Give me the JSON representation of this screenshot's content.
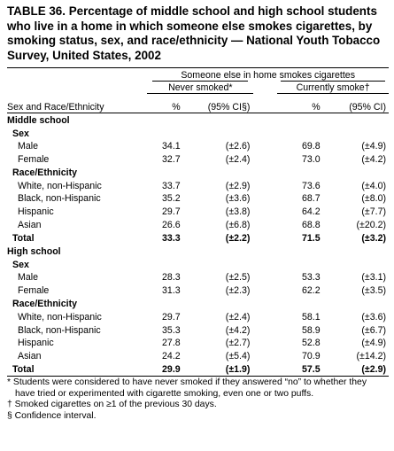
{
  "title": "TABLE 36. Percentage of middle school and high school students who live in a home in which someone else smokes cigarettes, by smoking status, sex, and race/ethnicity — National Youth Tobacco Survey, United States, 2002",
  "header": {
    "spanner": "Someone else in home smokes cigarettes",
    "never_smoked": "Never smoked*",
    "currently_smoke": "Currently smoke†",
    "row_label": "Sex and Race/Ethnicity",
    "pct": "%",
    "ci": "(95% CI§)",
    "pct2": "%",
    "ci2": "(95% CI)"
  },
  "middle_school": {
    "label": "Middle school",
    "sex_label": "Sex",
    "race_label": "Race/Ethnicity",
    "rows": [
      {
        "label": "Male",
        "never_pct": "34.1",
        "never_ci": "(±2.6)",
        "current_pct": "69.8",
        "current_ci": "(±4.9)"
      },
      {
        "label": "Female",
        "never_pct": "32.7",
        "never_ci": "(±2.4)",
        "current_pct": "73.0",
        "current_ci": "(±4.2)"
      },
      {
        "label": "White, non-Hispanic",
        "never_pct": "33.7",
        "never_ci": "(±2.9)",
        "current_pct": "73.6",
        "current_ci": "(±4.0)"
      },
      {
        "label": "Black, non-Hispanic",
        "never_pct": "35.2",
        "never_ci": "(±3.6)",
        "current_pct": "68.7",
        "current_ci": "(±8.0)"
      },
      {
        "label": "Hispanic",
        "never_pct": "29.7",
        "never_ci": "(±3.8)",
        "current_pct": "64.2",
        "current_ci": "(±7.7)"
      },
      {
        "label": "Asian",
        "never_pct": "26.6",
        "never_ci": "(±6.8)",
        "current_pct": "68.8",
        "current_ci": "(±20.2)"
      }
    ],
    "total": {
      "label": "Total",
      "never_pct": "33.3",
      "never_ci": "(±2.2)",
      "current_pct": "71.5",
      "current_ci": "(±3.2)"
    }
  },
  "high_school": {
    "label": "High school",
    "sex_label": "Sex",
    "race_label": "Race/Ethnicity",
    "rows": [
      {
        "label": "Male",
        "never_pct": "28.3",
        "never_ci": "(±2.5)",
        "current_pct": "53.3",
        "current_ci": "(±3.1)"
      },
      {
        "label": "Female",
        "never_pct": "31.3",
        "never_ci": "(±2.3)",
        "current_pct": "62.2",
        "current_ci": "(±3.5)"
      },
      {
        "label": "White, non-Hispanic",
        "never_pct": "29.7",
        "never_ci": "(±2.4)",
        "current_pct": "58.1",
        "current_ci": "(±3.6)"
      },
      {
        "label": "Black, non-Hispanic",
        "never_pct": "35.3",
        "never_ci": "(±4.2)",
        "current_pct": "58.9",
        "current_ci": "(±6.7)"
      },
      {
        "label": "Hispanic",
        "never_pct": "27.8",
        "never_ci": "(±2.7)",
        "current_pct": "52.8",
        "current_ci": "(±4.9)"
      },
      {
        "label": "Asian",
        "never_pct": "24.2",
        "never_ci": "(±5.4)",
        "current_pct": "70.9",
        "current_ci": "(±14.2)"
      }
    ],
    "total": {
      "label": "Total",
      "never_pct": "29.9",
      "never_ci": "(±1.9)",
      "current_pct": "57.5",
      "current_ci": "(±2.9)"
    }
  },
  "footnotes": [
    "* Students were considered to have never smoked if they answered “no” to whether they have tried or experimented with cigarette smoking, even one or two puffs.",
    "† Smoked cigarettes on ≥1 of the previous 30 days.",
    "§ Confidence interval."
  ]
}
